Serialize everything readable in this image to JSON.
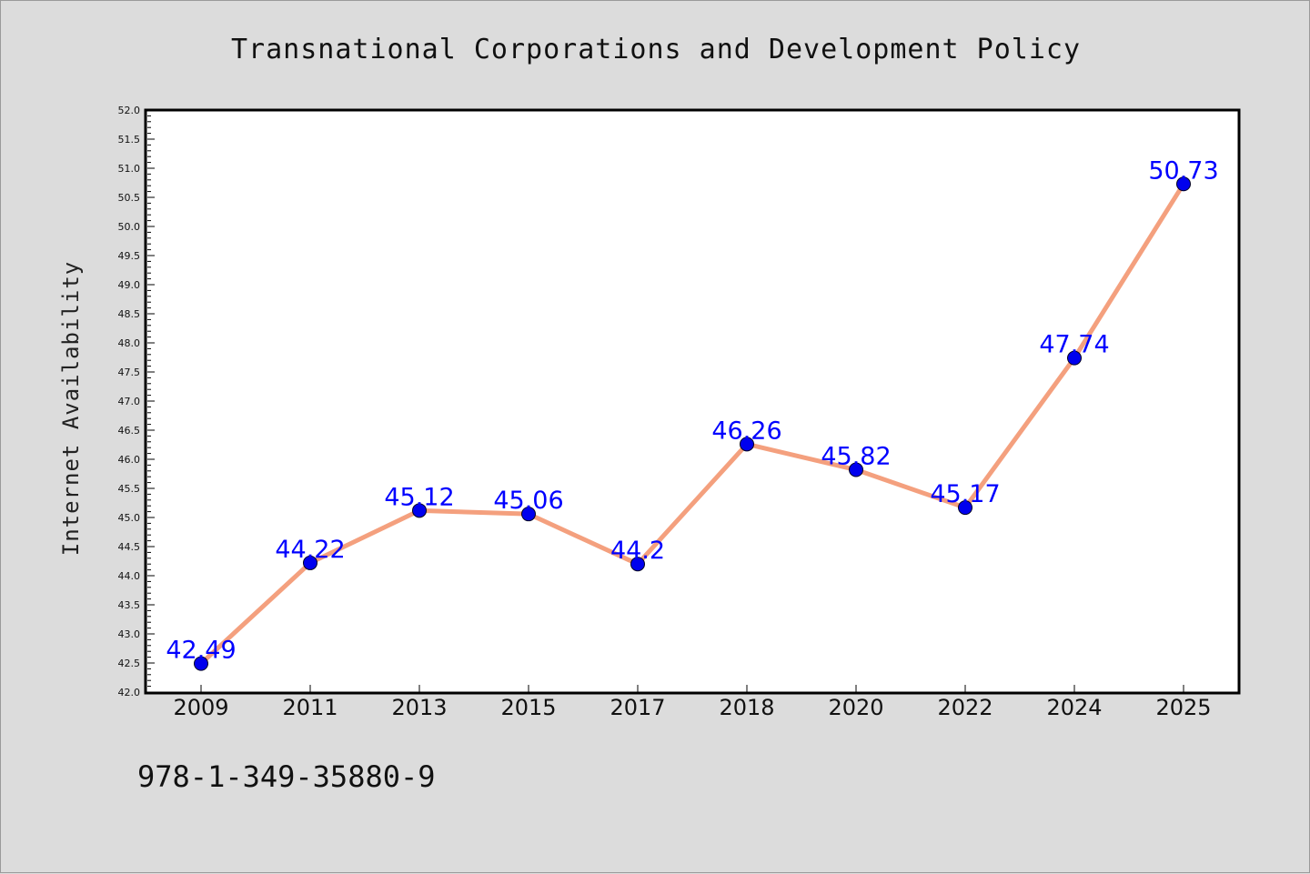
{
  "chart_data": {
    "type": "line",
    "title": "Transnational Corporations and Development Policy",
    "xlabel": "",
    "ylabel": "Internet Availability",
    "categories": [
      "2009",
      "2011",
      "2013",
      "2015",
      "2017",
      "2018",
      "2020",
      "2022",
      "2024",
      "2025"
    ],
    "series": [
      {
        "values": [
          42.49,
          44.22,
          45.12,
          45.06,
          44.2,
          46.26,
          45.82,
          45.17,
          47.74,
          50.73
        ]
      }
    ],
    "data_labels": [
      "42.49",
      "44.22",
      "45.12",
      "45.06",
      "44.2",
      "46.26",
      "45.82",
      "45.17",
      "47.74",
      "50.73"
    ],
    "ylim": [
      42.0,
      52.0
    ],
    "yticks": [
      "42.0",
      "42.5",
      "43.0",
      "43.5",
      "44.0",
      "44.5",
      "45.0",
      "45.5",
      "46.0",
      "46.5",
      "47.0",
      "47.5",
      "48.0",
      "48.5",
      "49.0",
      "49.5",
      "50.0",
      "50.5",
      "51.0",
      "51.5",
      "52.0"
    ],
    "grid": false,
    "legend": "none",
    "colors": {
      "line": "#f4a07e",
      "marker": "#0000ee",
      "label": "#0000ff",
      "background": "#dcdcdc",
      "plot_background": "#ffffff"
    }
  },
  "footer": {
    "isbn": "978-1-349-35880-9"
  }
}
